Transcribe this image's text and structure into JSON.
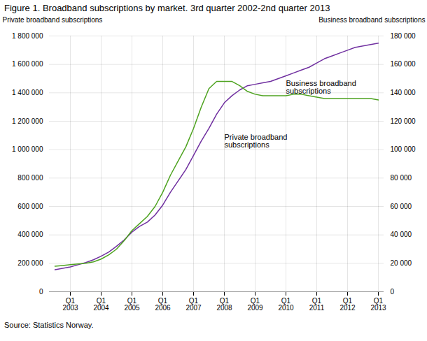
{
  "chart_data": {
    "type": "line",
    "title": "Figure 1. Broadband subscriptions by market. 3rd quarter 2002-2nd quarter 2013",
    "ylabel": "Private broadband subscriptions",
    "y2label": "Business broadband subscriptions",
    "source": "Source: Statistics Norway.",
    "categories": [
      null,
      null,
      "Q1\n2003",
      null,
      null,
      null,
      "Q1\n2004",
      null,
      null,
      null,
      "Q1\n2005",
      null,
      null,
      null,
      "Q1\n2006",
      null,
      null,
      null,
      "Q1\n2007",
      null,
      null,
      null,
      "Q1\n2008",
      null,
      null,
      null,
      "Q1\n2009",
      null,
      null,
      null,
      "Q1\n2010",
      null,
      null,
      null,
      "Q1\n2011",
      null,
      null,
      null,
      "Q1\n2012",
      null,
      null,
      null,
      "Q1\n2013"
    ],
    "series": [
      {
        "name": "Private broadband subscriptions",
        "color": "#7030A0",
        "values": [
          155000,
          165000,
          175000,
          190000,
          205000,
          225000,
          250000,
          280000,
          320000,
          365000,
          420000,
          460000,
          490000,
          540000,
          610000,
          700000,
          780000,
          860000,
          960000,
          1060000,
          1150000,
          1250000,
          1330000,
          1380000,
          1420000,
          1450000,
          1460000,
          1470000,
          1480000,
          1500000,
          1520000,
          1540000,
          1560000,
          1580000,
          1610000,
          1640000,
          1660000,
          1680000,
          1700000,
          1720000,
          1730000,
          1740000,
          1750000
        ]
      },
      {
        "name": "Business broadband subscriptions",
        "color": "#4EA320",
        "axis": "y2",
        "values": [
          18000,
          18500,
          19000,
          19500,
          20000,
          21000,
          23000,
          26000,
          30000,
          36000,
          43000,
          48000,
          53000,
          60000,
          70000,
          82000,
          92000,
          102000,
          115000,
          130000,
          143000,
          148000,
          148000,
          148000,
          145000,
          141000,
          139000,
          138000,
          138000,
          138000,
          138000,
          139000,
          139000,
          138000,
          137000,
          136000,
          136000,
          136000,
          136000,
          136000,
          136000,
          136000,
          135000
        ]
      }
    ],
    "ylim": [
      0,
      1800000
    ],
    "yticks": [
      0,
      {
        "value": 200000,
        "label": "200 000"
      },
      {
        "value": 400000,
        "label": "400 000"
      },
      {
        "value": 600000,
        "label": "600 000"
      },
      {
        "value": 800000,
        "label": "800 000"
      },
      {
        "value": 1000000,
        "label": "1 000 000"
      },
      {
        "value": 1200000,
        "label": "1 200 000"
      },
      {
        "value": 1400000,
        "label": "1 400 000"
      },
      {
        "value": 1600000,
        "label": "1 600 000"
      },
      {
        "value": 1800000,
        "label": "1 800 000"
      }
    ],
    "y2lim": [
      0,
      180000
    ],
    "y2ticks": [
      0,
      {
        "value": 20000,
        "label": "20 000"
      },
      {
        "value": 40000,
        "label": "40 000"
      },
      {
        "value": 60000,
        "label": "60 000"
      },
      {
        "value": 80000,
        "label": "80 000"
      },
      {
        "value": 100000,
        "label": "100 000"
      },
      {
        "value": 120000,
        "label": "120 000"
      },
      {
        "value": 140000,
        "label": "140 000"
      },
      {
        "value": 160000,
        "label": "160 000"
      },
      {
        "value": 180000,
        "label": "180 000"
      }
    ],
    "annotations": [
      {
        "text": "Private broadband\nsubscriptions",
        "x": 22,
        "y": 1000000
      },
      {
        "text": "Business broadband\nsubscriptions",
        "x": 30,
        "y": 1380000
      }
    ],
    "grid": true
  }
}
